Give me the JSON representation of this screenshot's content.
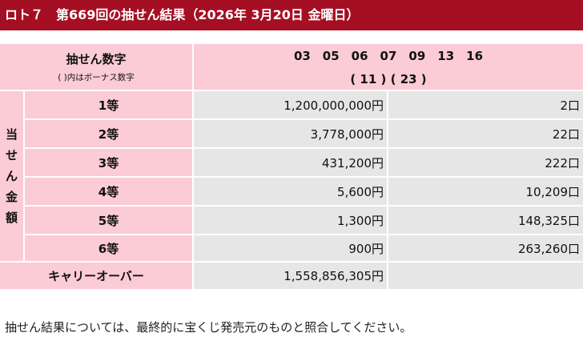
{
  "header": {
    "title": "ロト７　第669回の抽せん結果（2026年 3月20日 金曜日）"
  },
  "numbers": {
    "label": "抽せん数字",
    "sub_label": "( )内はボーナス数字",
    "main": "03　05　06　07　09　13　16",
    "bonus": "( 11 ) ( 23 )"
  },
  "prizes": {
    "side_label": [
      "当",
      "せ",
      "ん",
      "金",
      "額"
    ],
    "rows": [
      {
        "grade": "1等",
        "amount": "1,200,000,000円",
        "winners": "2口"
      },
      {
        "grade": "2等",
        "amount": "3,778,000円",
        "winners": "22口"
      },
      {
        "grade": "3等",
        "amount": "431,200円",
        "winners": "222口"
      },
      {
        "grade": "4等",
        "amount": "5,600円",
        "winners": "10,209口"
      },
      {
        "grade": "5等",
        "amount": "1,300円",
        "winners": "148,325口"
      },
      {
        "grade": "6等",
        "amount": "900円",
        "winners": "263,260口"
      }
    ]
  },
  "carryover": {
    "label": "キャリーオーバー",
    "amount": "1,558,856,305円"
  },
  "footer_note": "抽せん結果については、最終的に宝くじ発売元のものと照合してください。",
  "colors": {
    "header_bg": "#a50f23",
    "label_bg": "#fbcbd6",
    "value_bg": "#e6e6e6"
  }
}
